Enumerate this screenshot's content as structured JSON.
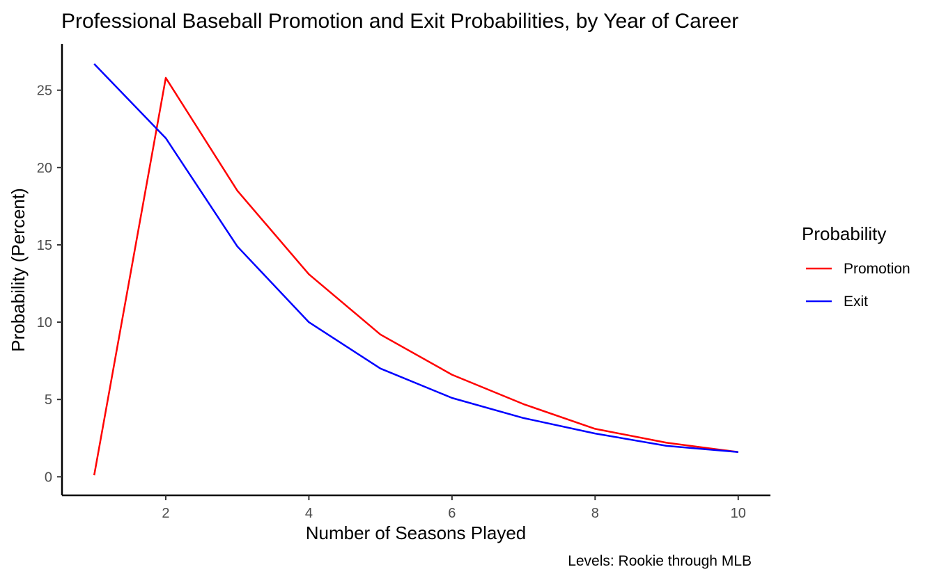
{
  "chart_data": {
    "type": "line",
    "title": "Professional Baseball Promotion and Exit Probabilities, by Year of Career",
    "xlabel": "Number of Seasons Played",
    "ylabel": "Probability (Percent)",
    "caption": "Levels: Rookie through MLB",
    "x": [
      1,
      2,
      3,
      4,
      5,
      6,
      7,
      8,
      9,
      10
    ],
    "xlim": [
      0.55,
      10.45
    ],
    "ylim": [
      -1.2,
      28.0
    ],
    "x_ticks": [
      2,
      4,
      6,
      8,
      10
    ],
    "y_ticks": [
      0,
      5,
      10,
      15,
      20,
      25
    ],
    "grid": false,
    "legend": {
      "title": "Probability",
      "position": "right"
    },
    "series": [
      {
        "name": "Promotion",
        "color": "#ff0000",
        "values": [
          0.1,
          25.8,
          18.5,
          13.1,
          9.2,
          6.6,
          4.7,
          3.1,
          2.2,
          1.6
        ]
      },
      {
        "name": "Exit",
        "color": "#0000ff",
        "values": [
          26.7,
          21.9,
          14.9,
          10.0,
          7.0,
          5.1,
          3.8,
          2.8,
          2.0,
          1.6
        ]
      }
    ]
  }
}
